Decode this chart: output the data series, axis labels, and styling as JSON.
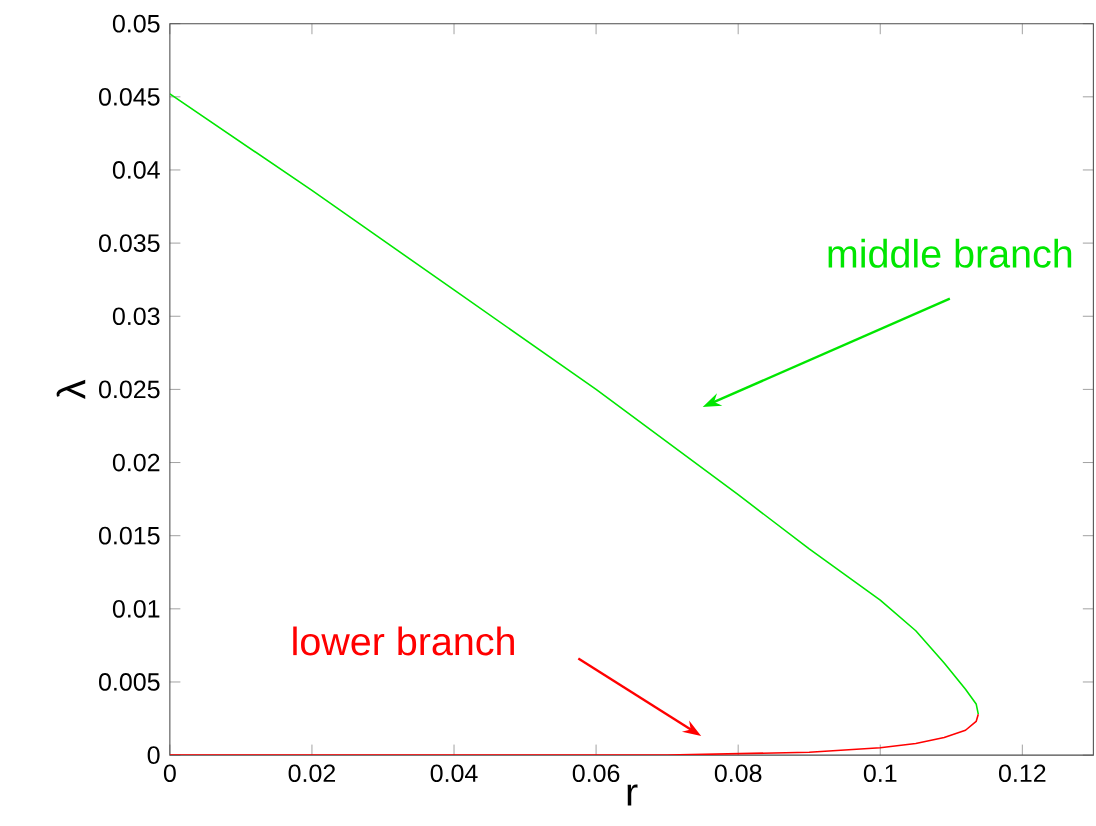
{
  "chart_data": {
    "type": "line",
    "xlabel": "r",
    "ylabel": "λ",
    "xlim": [
      0,
      0.13
    ],
    "ylim": [
      0,
      0.05
    ],
    "xticks": [
      0,
      0.02,
      0.04,
      0.06,
      0.08,
      0.1,
      0.12
    ],
    "yticks": [
      0,
      0.005,
      0.01,
      0.015,
      0.02,
      0.025,
      0.03,
      0.035,
      0.04,
      0.045,
      0.05
    ],
    "grid": false,
    "legend": false,
    "marker": "none",
    "line_style": "solid",
    "series": [
      {
        "name": "middle branch",
        "color": "#00e600",
        "x": [
          0,
          0.02,
          0.04,
          0.06,
          0.08,
          0.09,
          0.1,
          0.105,
          0.109,
          0.112,
          0.1135,
          0.1138
        ],
        "values": [
          0.0452,
          0.0386,
          0.0318,
          0.025,
          0.0178,
          0.0141,
          0.0106,
          0.0085,
          0.0063,
          0.0045,
          0.0035,
          0.0028
        ]
      },
      {
        "name": "lower branch",
        "color": "#ff0000",
        "x": [
          0,
          0.04,
          0.06,
          0.07,
          0.08,
          0.09,
          0.1,
          0.105,
          0.109,
          0.112,
          0.1135,
          0.1138
        ],
        "values": [
          0,
          0,
          0,
          0,
          0.0001,
          0.0002,
          0.0005,
          0.0008,
          0.0012,
          0.0017,
          0.0023,
          0.0028
        ]
      }
    ]
  }
}
